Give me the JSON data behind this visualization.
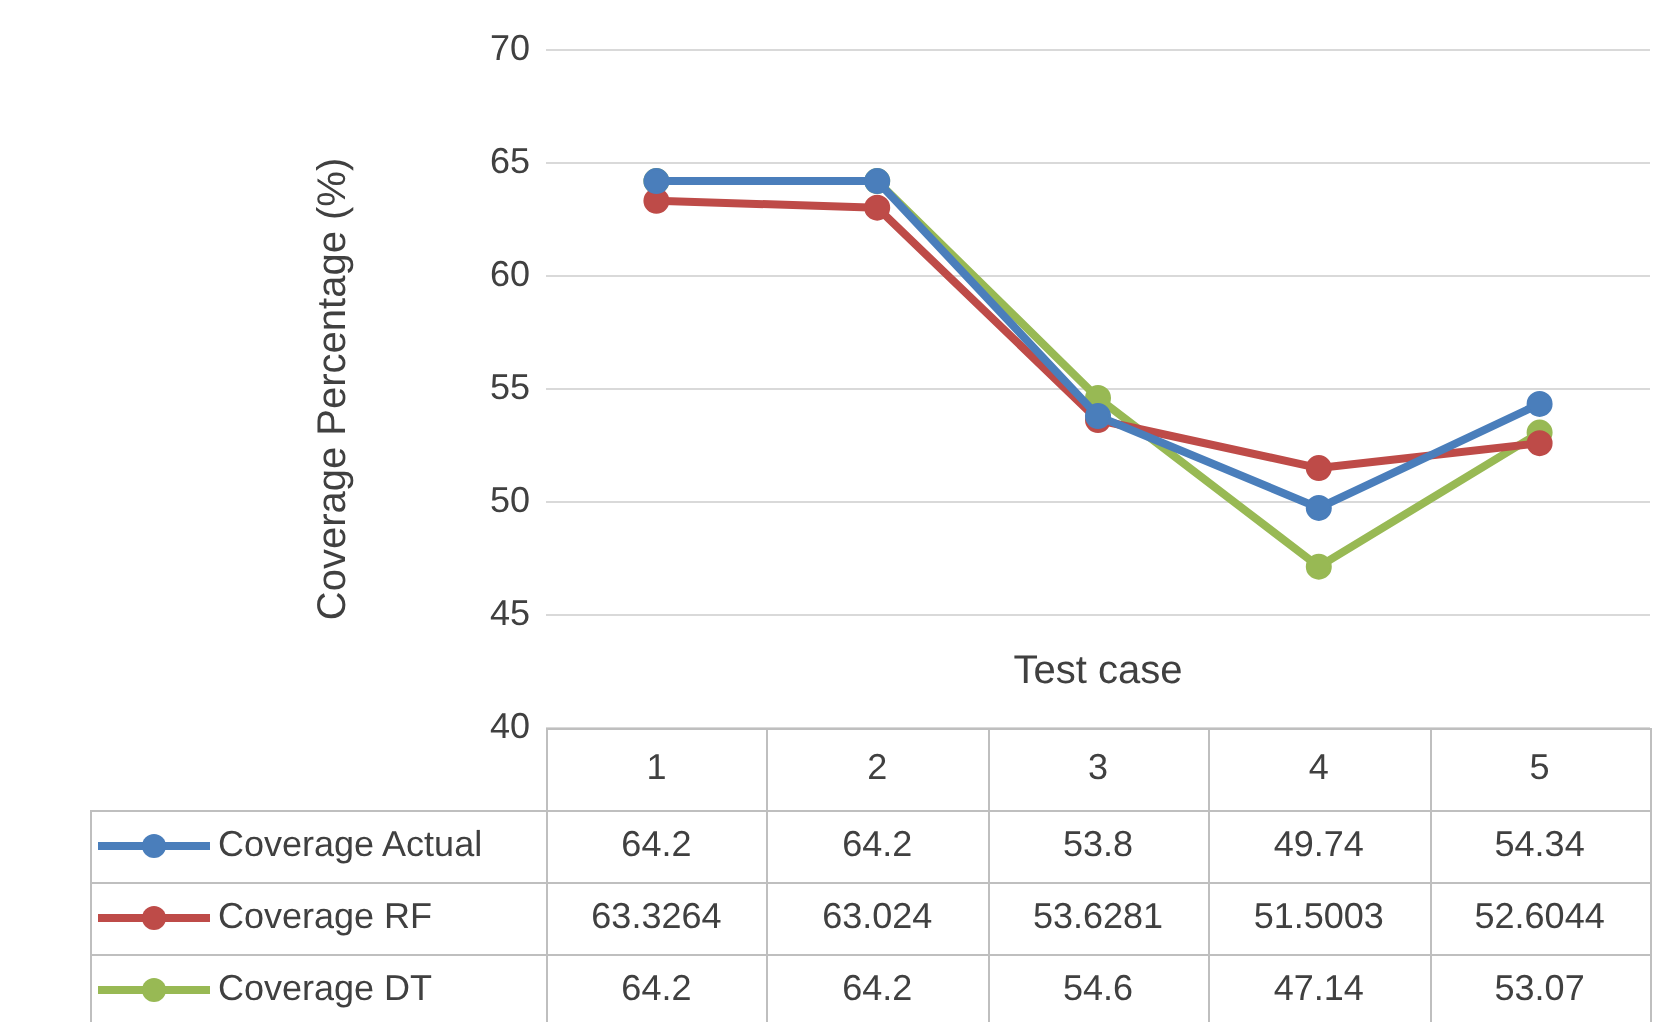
{
  "chart_data": {
    "type": "line",
    "xlabel": "Test case",
    "ylabel": "Coverage Percentage (%)",
    "categories": [
      "1",
      "2",
      "3",
      "4",
      "5"
    ],
    "series": [
      {
        "name": "Coverage Actual",
        "color": "#4a7ebb",
        "values": [
          64.2,
          64.2,
          53.8,
          49.74,
          54.34
        ]
      },
      {
        "name": "Coverage RF",
        "color": "#be4b48",
        "values": [
          63.3264,
          63.024,
          53.6281,
          51.5003,
          52.6044
        ]
      },
      {
        "name": "Coverage DT",
        "color": "#98b954",
        "values": [
          64.2,
          64.2,
          54.6,
          47.14,
          53.07
        ]
      }
    ],
    "ylim": [
      40,
      70
    ],
    "yticks": [
      40,
      45,
      50,
      55,
      60,
      65,
      70
    ],
    "grid": "y",
    "marker": "circle",
    "line_style": "solid",
    "legend": "bottom",
    "data_labels": true
  }
}
